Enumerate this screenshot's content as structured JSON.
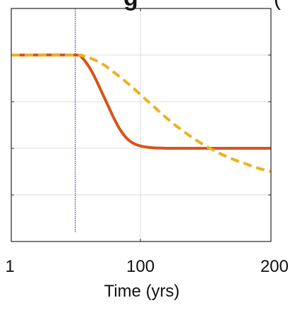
{
  "chart_data": {
    "type": "line",
    "title": "",
    "title_fragment": "g",
    "title_fragment_right": "(",
    "xlabel": "Time (yrs)",
    "ylabel": "",
    "xlim": [
      1,
      200
    ],
    "ylim": [
      0,
      1
    ],
    "xticks": [
      1,
      100,
      200
    ],
    "xtick_labels": [
      "1",
      "100",
      "200"
    ],
    "yticks": [
      0.2,
      0.4,
      0.6,
      0.8
    ],
    "grid": true,
    "legend": "none",
    "vline": {
      "x": 50,
      "color": "#1f3bb3",
      "style": "dotted"
    },
    "series": [
      {
        "color": "#d95319",
        "style": "solid",
        "x": [
          1,
          50,
          55,
          60,
          65,
          70,
          75,
          80,
          85,
          90,
          95,
          100,
          105,
          110,
          115,
          120,
          130,
          140,
          160,
          180,
          200
        ],
        "y": [
          0.8,
          0.8,
          0.79,
          0.755,
          0.705,
          0.645,
          0.585,
          0.525,
          0.475,
          0.44,
          0.42,
          0.41,
          0.405,
          0.402,
          0.401,
          0.4,
          0.4,
          0.4,
          0.4,
          0.4,
          0.4
        ]
      },
      {
        "color": "#edb120",
        "style": "dashed",
        "x": [
          1,
          50,
          55,
          60,
          70,
          80,
          90,
          100,
          110,
          120,
          130,
          140,
          150,
          160,
          170,
          180,
          190,
          200
        ],
        "y": [
          0.8,
          0.8,
          0.798,
          0.79,
          0.765,
          0.725,
          0.68,
          0.63,
          0.58,
          0.53,
          0.485,
          0.445,
          0.41,
          0.38,
          0.355,
          0.335,
          0.315,
          0.3
        ]
      }
    ]
  }
}
